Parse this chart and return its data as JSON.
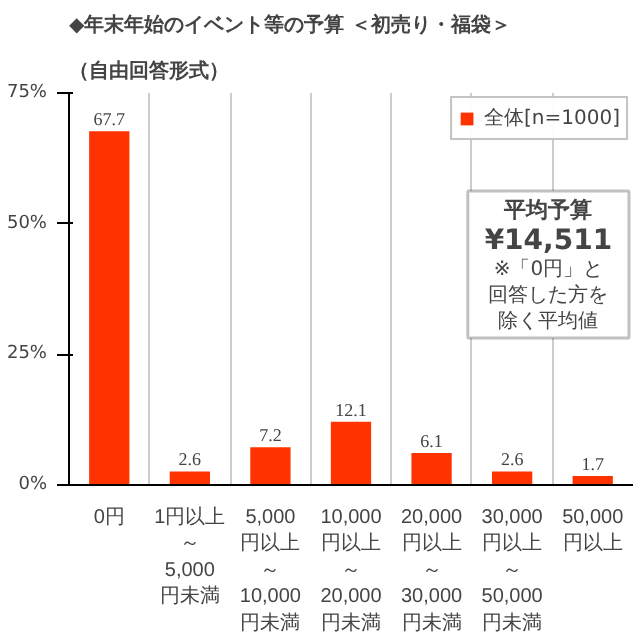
{
  "chart_data": {
    "type": "bar",
    "title": "◆年末年始のイベント等の予算 ＜初売り・福袋＞",
    "subtitle": "（自由回答形式）",
    "categories": [
      "0円",
      "1円以上～5,000円未満",
      "5,000円以上～10,000円未満",
      "10,000円以上～20,000円未満",
      "20,000円以上～30,000円未満",
      "30,000円以上～50,000円未満",
      "50,000円以上"
    ],
    "series": [
      {
        "name": "全体[n=1000]",
        "color": "#ff3300",
        "values": [
          67.7,
          2.6,
          7.2,
          12.1,
          6.1,
          2.6,
          1.7
        ]
      }
    ],
    "ylim": [
      0,
      75
    ],
    "yticks": [
      {
        "value": 0,
        "label": "0%"
      },
      {
        "value": 25,
        "label": "25%"
      },
      {
        "value": 50,
        "label": "50%"
      },
      {
        "value": 75,
        "label": "75%"
      }
    ],
    "data_labels": true,
    "grid": "x",
    "legend": "top right",
    "annotations": [
      "平均予算",
      "¥14,511",
      "※「0円」と回答した方を除く平均値"
    ]
  }
}
